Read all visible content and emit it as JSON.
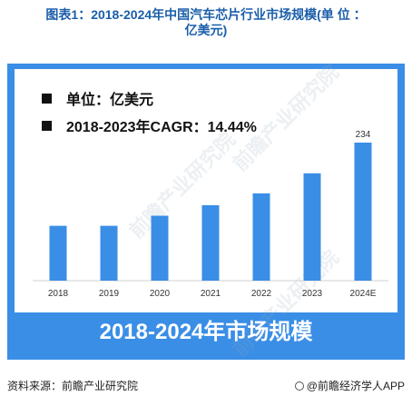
{
  "title": {
    "line1": "图表1：2018-2024年中国汽车芯片行业市场规模(单 位 ：",
    "line2": "亿美元)"
  },
  "legend": {
    "unit": "单位：亿美元",
    "cagr": "2018-2023年CAGR：14.44%"
  },
  "banner": "2018-2024年市场规模",
  "watermark": "前瞻产业研究院",
  "footer": {
    "source": "资料来源：前瞻产业研究院",
    "brand": "@前瞻经济学人APP"
  },
  "colors": {
    "bar": "#3a8ee6",
    "panel": "#3a8ee6",
    "title": "#1a5ea9"
  },
  "chart_data": {
    "type": "bar",
    "categories": [
      "2018",
      "2019",
      "2020",
      "2021",
      "2022",
      "2023",
      "2024E"
    ],
    "values": [
      93,
      93,
      110,
      128,
      148,
      182,
      234
    ],
    "data_labels": [
      null,
      null,
      null,
      null,
      null,
      null,
      "234"
    ],
    "title": "2018-2024年市场规模",
    "xlabel": "",
    "ylabel": "",
    "ylim": [
      0,
      234
    ],
    "grid": false,
    "legend": "none",
    "unit": "亿美元"
  }
}
